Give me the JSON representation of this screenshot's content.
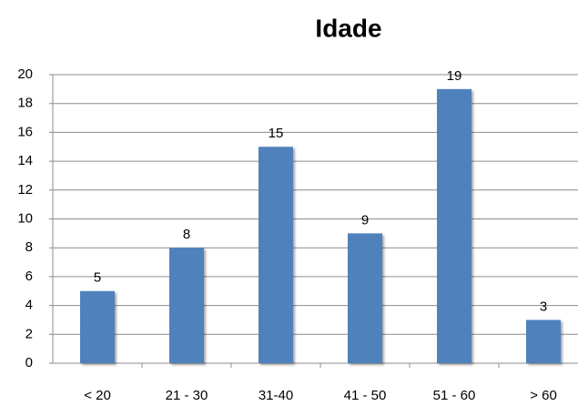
{
  "chart_data": {
    "type": "bar",
    "title": "Idade",
    "categories": [
      "< 20",
      "21 - 30",
      "31-40",
      "41 - 50",
      "51 - 60",
      "> 60"
    ],
    "values": [
      5,
      8,
      15,
      9,
      19,
      3
    ],
    "color": "#4f81bd",
    "ylim": [
      0,
      20
    ],
    "yticks": [
      0,
      2,
      4,
      6,
      8,
      10,
      12,
      14,
      16,
      18,
      20
    ],
    "grid": true
  }
}
